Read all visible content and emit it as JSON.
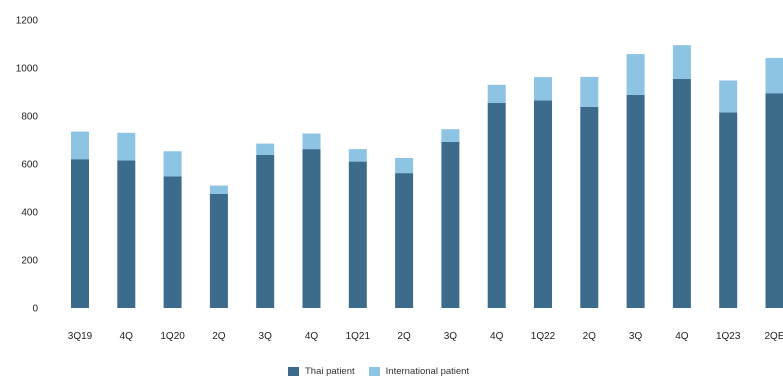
{
  "chart_data": {
    "type": "bar",
    "stacked": true,
    "categories": [
      "3Q19",
      "4Q",
      "1Q20",
      "2Q",
      "3Q",
      "4Q",
      "1Q21",
      "2Q",
      "3Q",
      "4Q",
      "1Q22",
      "2Q",
      "3Q",
      "4Q",
      "1Q23",
      "2QE"
    ],
    "series": [
      {
        "name": "Thai patient",
        "color": "#3d6b8c",
        "values": [
          620,
          615,
          548,
          475,
          638,
          662,
          610,
          562,
          692,
          855,
          865,
          838,
          888,
          955,
          815,
          895
        ]
      },
      {
        "name": "International patient",
        "color": "#8dc3e3",
        "values": [
          115,
          115,
          105,
          35,
          47,
          65,
          52,
          63,
          53,
          75,
          97,
          125,
          170,
          140,
          133,
          147
        ]
      }
    ],
    "ylim": [
      0,
      1200
    ],
    "yticks": [
      0,
      200,
      400,
      600,
      800,
      1000,
      1200
    ],
    "grid": false,
    "legend_position": "bottom-center"
  }
}
